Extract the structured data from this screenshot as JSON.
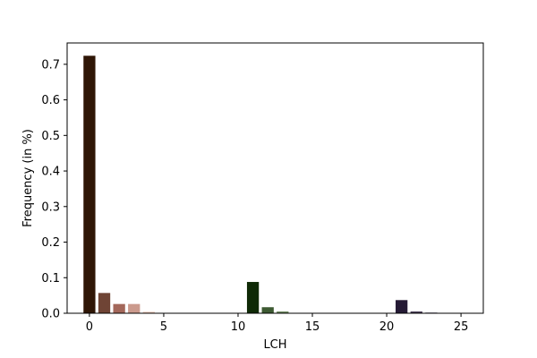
{
  "chart_data": {
    "type": "bar",
    "x": [
      0,
      1,
      2,
      3,
      4,
      5,
      6,
      7,
      8,
      9,
      10,
      11,
      12,
      13,
      14,
      15,
      16,
      17,
      18,
      19,
      20,
      21,
      22,
      23,
      24,
      25
    ],
    "values": [
      0.724,
      0.057,
      0.026,
      0.026,
      0.004,
      0.0,
      0.0,
      0.0,
      0.0,
      0.0,
      0.0,
      0.088,
      0.017,
      0.005,
      0.0,
      0.0,
      0.0,
      0.0,
      0.0,
      0.0,
      0.0,
      0.037,
      0.005,
      0.002,
      0.0,
      0.001
    ],
    "colors": [
      "#2f1606",
      "#6f4435",
      "#a3675a",
      "#cb9a8d",
      "#e8c4b6",
      "#f5e0d6",
      "#ffffff",
      "#ffffff",
      "#ffffff",
      "#ffffff",
      "#ffffff",
      "#0f2a06",
      "#3d5a32",
      "#6e8a60",
      "#ffffff",
      "#ffffff",
      "#ffffff",
      "#ffffff",
      "#ffffff",
      "#ffffff",
      "#ffffff",
      "#251a35",
      "#473c55",
      "#6e6a80",
      "#ffffff",
      "#8a8aa0"
    ],
    "title": "",
    "xlabel": "LCH",
    "ylabel": "Frequency (in %)",
    "xlim": [
      -1.5,
      26.5
    ],
    "ylim": [
      0.0,
      0.76
    ],
    "xticks": [
      0,
      5,
      10,
      15,
      20,
      25
    ],
    "yticks": [
      0.0,
      0.1,
      0.2,
      0.3,
      0.4,
      0.5,
      0.6,
      0.7
    ],
    "xtick_labels": [
      "0",
      "5",
      "10",
      "15",
      "20",
      "25"
    ],
    "ytick_labels": [
      "0.0",
      "0.1",
      "0.2",
      "0.3",
      "0.4",
      "0.5",
      "0.6",
      "0.7"
    ],
    "grid": false
  }
}
